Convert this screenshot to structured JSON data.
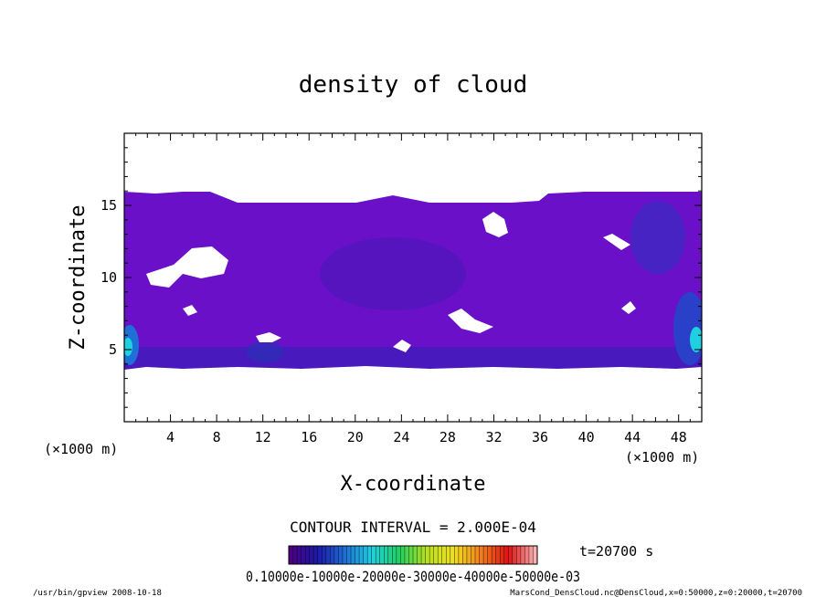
{
  "chart_data": {
    "type": "heatmap",
    "title": "density of cloud",
    "xlabel": "X-coordinate",
    "ylabel": "Z-coordinate",
    "x_unit": "(×1000 m)",
    "y_unit": "(×1000 m)",
    "xlim": [
      0,
      50
    ],
    "ylim": [
      0,
      20
    ],
    "xticks": [
      "4",
      "8",
      "12",
      "16",
      "20",
      "24",
      "28",
      "32",
      "36",
      "40",
      "44",
      "48"
    ],
    "yticks": [
      "5",
      "10",
      "15"
    ],
    "cloud_layer_z": [
      3.8,
      16.0
    ],
    "contour_interval": "CONTOUR INTERVAL = 2.000E-04",
    "time": "t=20700  s",
    "colorbar": {
      "min": 0,
      "max": 0.0012,
      "colors": [
        "#4b0082",
        "#1a1aa8",
        "#1e6fd6",
        "#1fd0e0",
        "#20d060",
        "#b8e020",
        "#f0e020",
        "#f08020",
        "#e01010",
        "#f8b0b0"
      ],
      "labels_overlapping": "0.10000e-10000e-20000e-30000e-40000e-50000e-03"
    },
    "footer_left": "/usr/bin/gpview   2008-10-18",
    "footer_right": "MarsCond_DensCloud.nc@DensCloud,x=0:50000,z=0:20000,t=20700"
  }
}
